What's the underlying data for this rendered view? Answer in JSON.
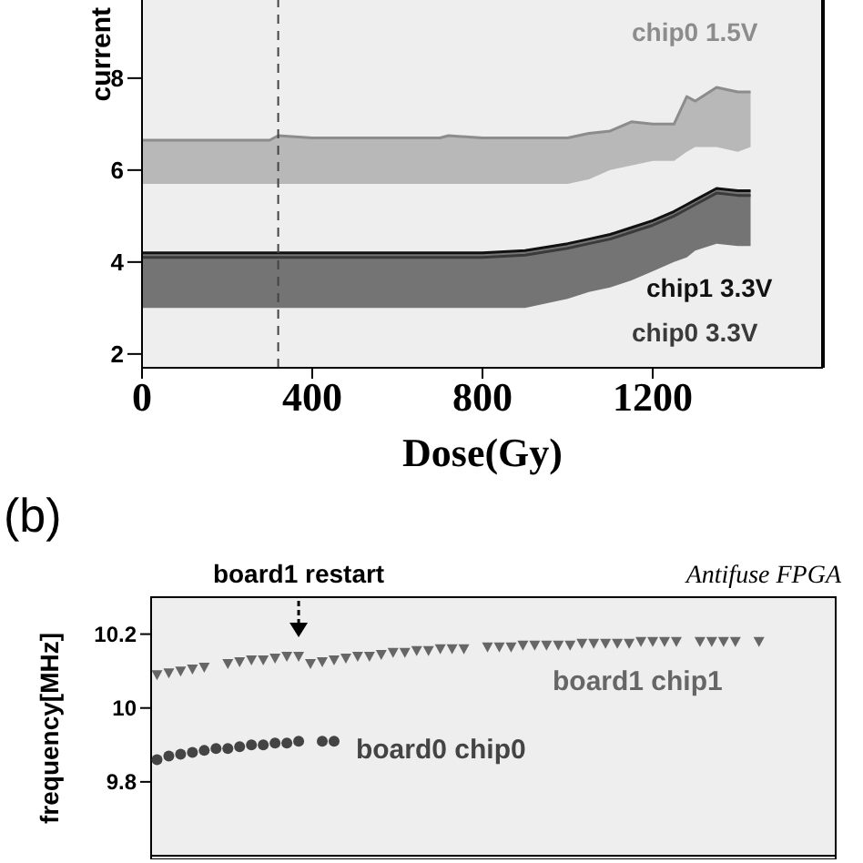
{
  "chart_data": [
    {
      "type": "line",
      "xlabel": "Dose(Gy)",
      "ylabel": "current",
      "x": [
        0,
        100,
        200,
        300,
        320,
        400,
        500,
        600,
        700,
        720,
        800,
        900,
        1000,
        1050,
        1100,
        1150,
        1200,
        1250,
        1280,
        1300,
        1350,
        1400,
        1430
      ],
      "xlim": [
        0,
        1600
      ],
      "xticks": [
        0,
        400,
        800,
        1200
      ],
      "ylim": [
        1.7,
        9.7
      ],
      "yticks": [
        2,
        4,
        6,
        8
      ],
      "grid": false,
      "marker": "none",
      "line_style": "solid",
      "series": [
        {
          "name": "chip0 1.5V",
          "color": "#8c8c8c",
          "values": [
            6.65,
            6.65,
            6.65,
            6.65,
            6.75,
            6.7,
            6.7,
            6.7,
            6.7,
            6.75,
            6.7,
            6.7,
            6.7,
            6.8,
            6.85,
            7.05,
            7.0,
            7.0,
            7.6,
            7.5,
            7.8,
            7.7,
            7.7
          ],
          "lower": [
            5.7,
            5.7,
            5.7,
            5.7,
            5.7,
            5.7,
            5.7,
            5.7,
            5.7,
            5.7,
            5.7,
            5.7,
            5.7,
            5.8,
            6.0,
            6.1,
            6.2,
            6.2,
            6.4,
            6.5,
            6.5,
            6.4,
            6.5
          ],
          "upper": [
            6.65,
            6.65,
            6.65,
            6.65,
            6.75,
            6.7,
            6.7,
            6.7,
            6.7,
            6.75,
            6.7,
            6.7,
            6.7,
            6.8,
            6.85,
            7.05,
            7.0,
            7.0,
            7.6,
            7.5,
            7.8,
            7.7,
            7.7
          ]
        },
        {
          "name": "chip1 3.3V",
          "color": "#111111",
          "values": [
            4.2,
            4.2,
            4.2,
            4.2,
            4.2,
            4.2,
            4.2,
            4.2,
            4.2,
            4.2,
            4.2,
            4.25,
            4.4,
            4.5,
            4.6,
            4.75,
            4.9,
            5.1,
            5.25,
            5.35,
            5.6,
            5.55,
            5.55
          ],
          "lower": [
            3.0,
            3.0,
            3.0,
            3.0,
            3.0,
            3.0,
            3.0,
            3.0,
            3.0,
            3.0,
            3.0,
            3.0,
            3.2,
            3.35,
            3.45,
            3.6,
            3.8,
            4.0,
            4.1,
            4.25,
            4.4,
            4.35,
            4.35
          ],
          "upper": [
            4.2,
            4.2,
            4.2,
            4.2,
            4.2,
            4.2,
            4.2,
            4.2,
            4.2,
            4.2,
            4.2,
            4.25,
            4.4,
            4.5,
            4.6,
            4.75,
            4.9,
            5.1,
            5.25,
            5.35,
            5.6,
            5.55,
            5.55
          ]
        },
        {
          "name": "chip0 3.3V",
          "color": "#3a3a3a",
          "values": [
            4.1,
            4.1,
            4.1,
            4.1,
            4.1,
            4.1,
            4.1,
            4.1,
            4.1,
            4.1,
            4.1,
            4.15,
            4.3,
            4.4,
            4.5,
            4.65,
            4.8,
            5.0,
            5.15,
            5.25,
            5.5,
            5.45,
            5.45
          ]
        }
      ],
      "ref_lines": [
        {
          "axis": "x",
          "value": 320,
          "line_style": "dashed",
          "color": "#444444"
        }
      ]
    },
    {
      "type": "scatter",
      "title": "(b)",
      "ylabel": "frequency[MHz]",
      "annotations": [
        "board1 restart",
        "Antifuse FPGA"
      ],
      "categories": [
        null,
        null,
        null,
        null,
        null,
        null,
        null,
        null,
        null,
        null,
        null,
        null,
        null,
        null,
        null,
        null,
        null,
        null,
        null,
        null,
        null,
        null,
        null,
        null,
        null,
        null,
        null,
        null,
        null,
        null,
        null,
        null,
        null,
        null,
        null,
        null,
        null,
        null,
        null,
        null,
        null,
        null,
        null,
        null,
        null,
        null,
        null,
        null,
        null,
        null,
        null,
        null,
        null,
        null,
        null,
        null,
        null,
        null
      ],
      "ylim": [
        9.6,
        10.3
      ],
      "yticks": [
        9.8,
        10,
        10.2
      ],
      "tick_labels": "y",
      "grid": false,
      "series": [
        {
          "name": "board1 chip1",
          "color": "#666666",
          "marker": "triangle",
          "values": [
            10.09,
            10.095,
            10.1,
            10.105,
            10.11,
            null,
            10.12,
            10.125,
            10.13,
            10.13,
            10.135,
            10.14,
            10.14,
            10.12,
            10.125,
            10.13,
            10.135,
            10.14,
            10.14,
            10.145,
            10.15,
            10.15,
            10.155,
            10.155,
            10.16,
            10.16,
            10.16,
            null,
            10.165,
            10.165,
            10.165,
            10.17,
            10.17,
            10.17,
            10.17,
            10.17,
            10.175,
            10.175,
            10.175,
            10.175,
            10.175,
            10.18,
            10.18,
            10.18,
            10.18,
            null,
            10.18,
            10.18,
            10.18,
            10.18,
            null,
            10.18,
            null,
            null,
            null,
            null,
            null,
            null
          ]
        },
        {
          "name": "board0 chip0",
          "color": "#444444",
          "marker": "circle",
          "values": [
            9.86,
            9.87,
            9.875,
            9.88,
            9.885,
            9.89,
            9.89,
            9.895,
            9.9,
            9.9,
            9.905,
            9.905,
            9.91,
            null,
            9.91,
            9.91,
            null,
            null,
            null,
            null,
            null,
            null,
            null,
            null,
            null,
            null,
            null,
            null,
            null,
            null,
            null,
            null,
            null,
            null,
            null,
            null,
            null,
            null,
            null,
            null,
            null,
            null,
            null,
            null,
            null,
            null,
            null,
            null,
            null,
            null,
            null,
            null,
            null,
            null,
            null,
            null,
            null,
            null
          ]
        }
      ]
    }
  ]
}
